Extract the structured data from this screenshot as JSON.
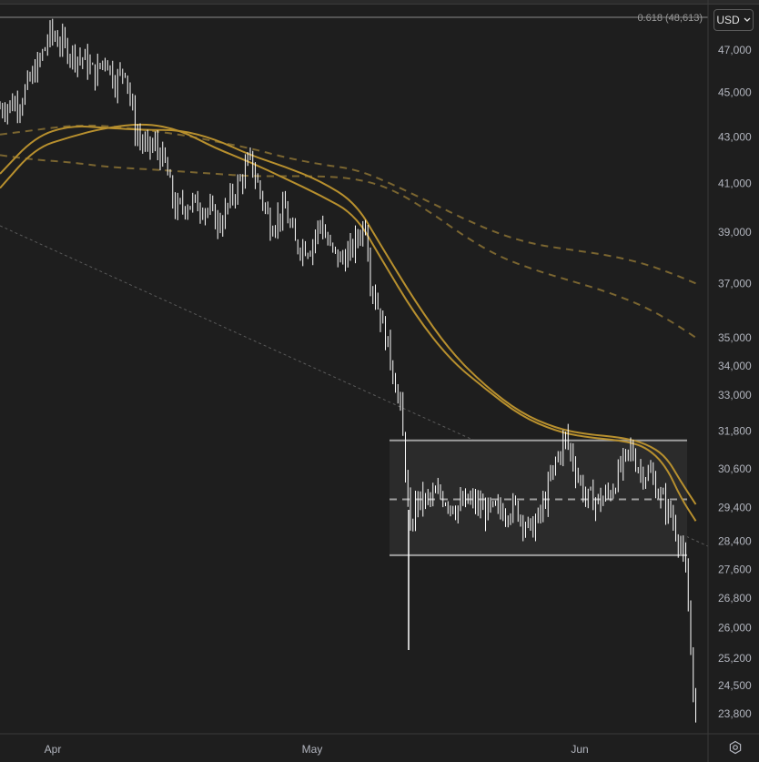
{
  "currency_button": {
    "label": "USD",
    "icon": "chevron-down-icon"
  },
  "settings_icon": "gear-icon",
  "fib_label": "0.618 (48,613)",
  "colors": {
    "background": "#1e1e1e",
    "candles": "#ffffff",
    "ma_solid": "#b8902e",
    "ma_dashed": "#7a6530",
    "range_box": "#9e9e9e",
    "trendline": "#5a5a5a"
  },
  "chart_data": {
    "type": "candlestick",
    "x_ticks": [
      "Apr",
      "May",
      "Jun"
    ],
    "y_ticks": [
      "47,000",
      "45,000",
      "43,000",
      "41,000",
      "39,000",
      "37,000",
      "35,000",
      "34,000",
      "33,000",
      "31,800",
      "30,600",
      "29,400",
      "28,400",
      "27,600",
      "26,800",
      "26,000",
      "25,200",
      "24,500",
      "23,800"
    ],
    "y_scale": "log",
    "y_range": [
      23000,
      48613
    ],
    "fib_level": {
      "ratio": 0.618,
      "price": 48613
    },
    "range_box": {
      "top": 31500,
      "mid": 29650,
      "bottom": 28000
    },
    "close_path": [
      [
        0,
        44300
      ],
      [
        4,
        44600
      ],
      [
        8,
        46500
      ],
      [
        10,
        47800
      ],
      [
        12,
        47400
      ],
      [
        14,
        46900
      ],
      [
        17,
        46500
      ],
      [
        19,
        45800
      ],
      [
        21,
        46700
      ],
      [
        23,
        45500
      ],
      [
        25,
        46200
      ],
      [
        27,
        43300
      ],
      [
        29,
        42500
      ],
      [
        31,
        42600
      ],
      [
        33,
        41800
      ],
      [
        35,
        39900
      ],
      [
        38,
        40200
      ],
      [
        41,
        40000
      ],
      [
        44,
        39300
      ],
      [
        46,
        40300
      ],
      [
        48,
        41100
      ],
      [
        50,
        42000
      ],
      [
        52,
        40600
      ],
      [
        54,
        39300
      ],
      [
        57,
        39900
      ],
      [
        59,
        38500
      ],
      [
        62,
        38400
      ],
      [
        64,
        39400
      ],
      [
        66,
        38300
      ],
      [
        68,
        37900
      ],
      [
        70,
        38200
      ],
      [
        72,
        39000
      ],
      [
        73,
        39400
      ],
      [
        74,
        37200
      ],
      [
        76,
        35800
      ],
      [
        78,
        34300
      ],
      [
        80,
        32500
      ],
      [
        81,
        30600
      ],
      [
        82,
        28500
      ],
      [
        83,
        29600
      ],
      [
        85,
        29600
      ],
      [
        88,
        29800
      ],
      [
        91,
        29400
      ],
      [
        94,
        29600
      ],
      [
        97,
        29300
      ],
      [
        100,
        29300
      ],
      [
        103,
        29400
      ],
      [
        106,
        28700
      ],
      [
        108,
        29200
      ],
      [
        111,
        30800
      ],
      [
        113,
        31600
      ],
      [
        115,
        30600
      ],
      [
        117,
        29700
      ],
      [
        120,
        29600
      ],
      [
        122,
        29900
      ],
      [
        124,
        30600
      ],
      [
        126,
        31200
      ],
      [
        128,
        30500
      ],
      [
        130,
        30400
      ],
      [
        132,
        29700
      ],
      [
        134,
        29200
      ],
      [
        136,
        28300
      ],
      [
        137,
        27400
      ],
      [
        138,
        25500
      ],
      [
        139,
        23500
      ]
    ],
    "ma_solid": [
      [
        [
          0,
          40800
        ],
        [
          7,
          42500
        ],
        [
          14,
          43000
        ],
        [
          21,
          43400
        ],
        [
          29,
          43600
        ],
        [
          36,
          43300
        ],
        [
          43,
          42500
        ],
        [
          50,
          41900
        ],
        [
          57,
          41200
        ],
        [
          64,
          40500
        ],
        [
          71,
          39700
        ],
        [
          76,
          38000
        ],
        [
          83,
          35800
        ],
        [
          90,
          34200
        ],
        [
          97,
          33200
        ],
        [
          104,
          32300
        ],
        [
          111,
          31800
        ],
        [
          117,
          31600
        ],
        [
          124,
          31500
        ],
        [
          129,
          31300
        ],
        [
          133,
          30700
        ],
        [
          136,
          29700
        ],
        [
          139,
          29000
        ]
      ],
      [
        [
          0,
          41400
        ],
        [
          7,
          43000
        ],
        [
          14,
          43500
        ],
        [
          21,
          43400
        ],
        [
          29,
          43300
        ],
        [
          36,
          43300
        ],
        [
          43,
          42900
        ],
        [
          50,
          42200
        ],
        [
          57,
          41700
        ],
        [
          64,
          41100
        ],
        [
          71,
          40200
        ],
        [
          76,
          38500
        ],
        [
          83,
          36300
        ],
        [
          90,
          34500
        ],
        [
          97,
          33300
        ],
        [
          104,
          32400
        ],
        [
          111,
          31900
        ],
        [
          117,
          31700
        ],
        [
          124,
          31600
        ],
        [
          129,
          31400
        ],
        [
          133,
          31000
        ],
        [
          136,
          30200
        ],
        [
          139,
          29500
        ]
      ]
    ],
    "ma_dashed": [
      [
        [
          0,
          43100
        ],
        [
          7,
          43300
        ],
        [
          14,
          43500
        ],
        [
          21,
          43500
        ],
        [
          29,
          43300
        ],
        [
          36,
          43100
        ],
        [
          43,
          42800
        ],
        [
          50,
          42500
        ],
        [
          57,
          42100
        ],
        [
          64,
          41800
        ],
        [
          71,
          41600
        ],
        [
          78,
          41000
        ],
        [
          86,
          40200
        ],
        [
          93,
          39500
        ],
        [
          100,
          38900
        ],
        [
          107,
          38500
        ],
        [
          114,
          38300
        ],
        [
          121,
          38100
        ],
        [
          128,
          37800
        ],
        [
          134,
          37400
        ],
        [
          139,
          37000
        ]
      ],
      [
        [
          0,
          42200
        ],
        [
          7,
          42000
        ],
        [
          14,
          41900
        ],
        [
          21,
          41700
        ],
        [
          29,
          41600
        ],
        [
          36,
          41500
        ],
        [
          43,
          41400
        ],
        [
          50,
          41300
        ],
        [
          57,
          41300
        ],
        [
          64,
          41300
        ],
        [
          71,
          41200
        ],
        [
          78,
          40800
        ],
        [
          86,
          39800
        ],
        [
          93,
          38800
        ],
        [
          100,
          38000
        ],
        [
          107,
          37500
        ],
        [
          114,
          37100
        ],
        [
          121,
          36700
        ],
        [
          128,
          36200
        ],
        [
          134,
          35600
        ],
        [
          139,
          35000
        ]
      ]
    ]
  }
}
